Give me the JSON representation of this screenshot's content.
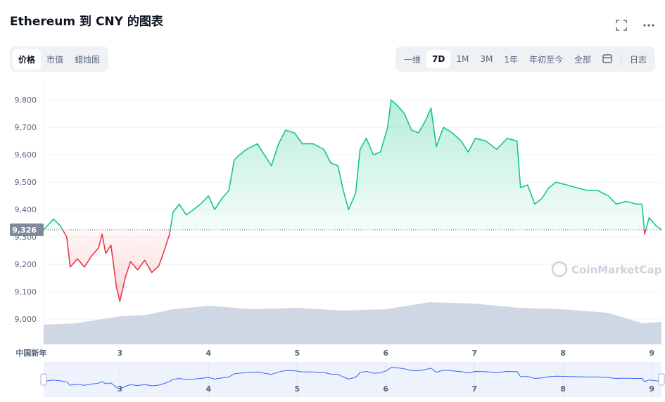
{
  "header": {
    "title": "Ethereum 到 CNY 的图表",
    "tabs": [
      "价格",
      "市值",
      "蜡烛图"
    ],
    "active_tab": 0,
    "ranges": [
      "一维",
      "7D",
      "1M",
      "3M",
      "1年",
      "年初至今",
      "全部"
    ],
    "active_range": 1,
    "log": "日志"
  },
  "chart_data": {
    "type": "line",
    "watermark": "CoinMarketCap",
    "grid": true,
    "color_up": "#16c784",
    "color_down": "#ea3943",
    "volume_color": "#cfd6e4",
    "navigator_color": "#3861fb",
    "reference": {
      "value": 9326,
      "label": "9,326"
    },
    "x": [
      2.14,
      2.25,
      2.33,
      2.4,
      2.44,
      2.52,
      2.6,
      2.68,
      2.76,
      2.8,
      2.84,
      2.9,
      2.96,
      3.0,
      3.06,
      3.12,
      3.2,
      3.28,
      3.36,
      3.44,
      3.49,
      3.56,
      3.6,
      3.67,
      3.75,
      3.83,
      3.91,
      4.0,
      4.07,
      4.15,
      4.23,
      4.29,
      4.35,
      4.43,
      4.55,
      4.63,
      4.71,
      4.79,
      4.87,
      4.97,
      5.06,
      5.18,
      5.3,
      5.38,
      5.46,
      5.52,
      5.58,
      5.66,
      5.71,
      5.78,
      5.86,
      5.94,
      6.02,
      6.06,
      6.13,
      6.21,
      6.29,
      6.37,
      6.44,
      6.51,
      6.57,
      6.65,
      6.75,
      6.85,
      6.93,
      7.01,
      7.13,
      7.25,
      7.37,
      7.48,
      7.52,
      7.6,
      7.68,
      7.76,
      7.84,
      7.92,
      8.04,
      8.15,
      8.27,
      8.39,
      8.51,
      8.6,
      8.71,
      8.83,
      8.89,
      8.92,
      8.97,
      9.05,
      9.11
    ],
    "values": [
      9326,
      9365,
      9340,
      9300,
      9190,
      9220,
      9190,
      9230,
      9260,
      9310,
      9240,
      9270,
      9120,
      9065,
      9150,
      9210,
      9180,
      9215,
      9170,
      9195,
      9240,
      9310,
      9390,
      9420,
      9380,
      9400,
      9420,
      9450,
      9400,
      9440,
      9470,
      9580,
      9600,
      9620,
      9640,
      9600,
      9560,
      9640,
      9690,
      9680,
      9640,
      9640,
      9620,
      9570,
      9560,
      9470,
      9400,
      9460,
      9620,
      9660,
      9600,
      9610,
      9700,
      9800,
      9780,
      9750,
      9690,
      9680,
      9720,
      9770,
      9630,
      9700,
      9680,
      9650,
      9610,
      9660,
      9650,
      9620,
      9660,
      9650,
      9480,
      9490,
      9420,
      9440,
      9480,
      9500,
      9490,
      9480,
      9470,
      9470,
      9450,
      9420,
      9430,
      9420,
      9420,
      9310,
      9370,
      9340,
      9326
    ],
    "volume": {
      "x": [
        2.14,
        2.5,
        3.0,
        3.3,
        3.6,
        4.0,
        4.5,
        5.0,
        5.5,
        6.0,
        6.5,
        7.0,
        7.5,
        8.0,
        8.5,
        8.9,
        9.11
      ],
      "values": [
        28,
        30,
        40,
        42,
        50,
        55,
        50,
        52,
        48,
        50,
        60,
        58,
        52,
        50,
        45,
        30,
        32
      ]
    },
    "vlim": [
      0,
      100
    ],
    "xlim": [
      2.14,
      9.11
    ],
    "xticks": [
      {
        "value": 2,
        "label": "中国新年"
      },
      3,
      4,
      5,
      6,
      7,
      8,
      9
    ],
    "ylim": [
      8908,
      9862
    ],
    "yticks": [
      {
        "value": 9000,
        "label": "9,000"
      },
      {
        "value": 9100,
        "label": "9,100"
      },
      {
        "value": 9200,
        "label": "9,200"
      },
      {
        "value": 9300,
        "label": "9,300"
      },
      {
        "value": 9400,
        "label": "9,400"
      },
      {
        "value": 9500,
        "label": "9,500"
      },
      {
        "value": 9600,
        "label": "9,600"
      },
      {
        "value": 9700,
        "label": "9,700"
      },
      {
        "value": 9800,
        "label": "9,800"
      }
    ]
  }
}
